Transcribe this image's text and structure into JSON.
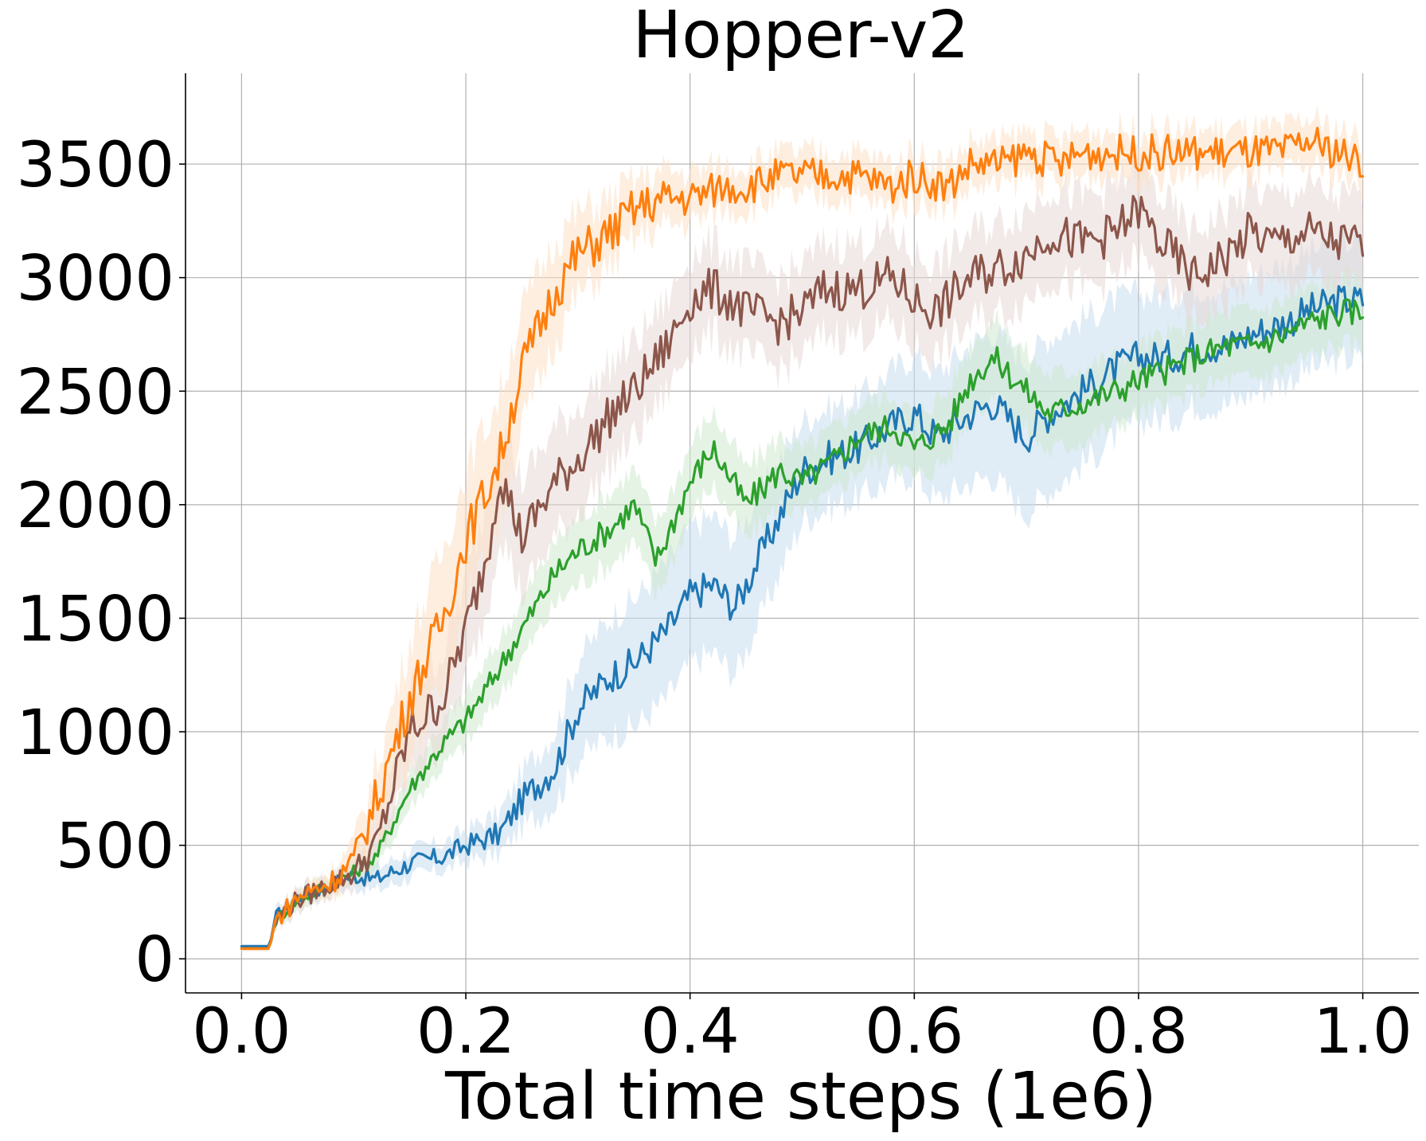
{
  "chart_data": {
    "type": "line",
    "title": "Hopper-v2",
    "xlabel": "Total time steps (1e6)",
    "ylabel": "",
    "xlim": [
      -0.05,
      1.05
    ],
    "ylim": [
      -150,
      3900
    ],
    "x_ticks": [
      0.0,
      0.2,
      0.4,
      0.6,
      0.8,
      1.0
    ],
    "x_tick_labels": [
      "0.0",
      "0.2",
      "0.4",
      "0.6",
      "0.8",
      "1.0"
    ],
    "y_ticks": [
      0,
      500,
      1000,
      1500,
      2000,
      2500,
      3000,
      3500
    ],
    "y_tick_labels": [
      "0",
      "500",
      "1000",
      "1500",
      "2000",
      "2500",
      "3000",
      "3500"
    ],
    "grid": true,
    "legend": "none",
    "series": [
      {
        "color": "#1f77b4",
        "band_color": "#c6dcef",
        "x": [
          0.0,
          0.025,
          0.03,
          0.05,
          0.08,
          0.1,
          0.12,
          0.15,
          0.18,
          0.2,
          0.23,
          0.25,
          0.28,
          0.3,
          0.33,
          0.35,
          0.38,
          0.4,
          0.42,
          0.44,
          0.46,
          0.48,
          0.5,
          0.52,
          0.55,
          0.58,
          0.6,
          0.62,
          0.65,
          0.67,
          0.7,
          0.72,
          0.75,
          0.78,
          0.8,
          0.83,
          0.85,
          0.88,
          0.9,
          0.93,
          0.95,
          0.98,
          1.0
        ],
        "values": [
          55,
          55,
          180,
          270,
          330,
          370,
          350,
          420,
          450,
          500,
          550,
          700,
          850,
          1100,
          1250,
          1300,
          1450,
          1600,
          1650,
          1550,
          1750,
          1950,
          2150,
          2200,
          2250,
          2350,
          2400,
          2300,
          2400,
          2450,
          2300,
          2400,
          2500,
          2600,
          2650,
          2650,
          2700,
          2700,
          2750,
          2800,
          2850,
          2900,
          2900
        ],
        "spread": [
          10,
          10,
          30,
          40,
          40,
          50,
          50,
          60,
          60,
          70,
          90,
          120,
          160,
          220,
          260,
          280,
          300,
          300,
          300,
          300,
          280,
          250,
          220,
          220,
          220,
          240,
          260,
          280,
          300,
          320,
          340,
          340,
          320,
          300,
          280,
          270,
          260,
          260,
          260,
          260,
          260,
          260,
          260
        ]
      },
      {
        "color": "#2ca02c",
        "band_color": "#cfe9cf",
        "x": [
          0.0,
          0.025,
          0.03,
          0.05,
          0.08,
          0.1,
          0.12,
          0.15,
          0.18,
          0.2,
          0.22,
          0.25,
          0.28,
          0.3,
          0.33,
          0.35,
          0.37,
          0.4,
          0.42,
          0.45,
          0.48,
          0.5,
          0.53,
          0.55,
          0.58,
          0.6,
          0.63,
          0.65,
          0.67,
          0.7,
          0.72,
          0.75,
          0.78,
          0.8,
          0.83,
          0.85,
          0.88,
          0.9,
          0.93,
          0.95,
          0.98,
          1.0
        ],
        "values": [
          45,
          45,
          170,
          260,
          330,
          380,
          450,
          750,
          950,
          1050,
          1200,
          1450,
          1700,
          1800,
          1900,
          2000,
          1750,
          2100,
          2250,
          2000,
          2150,
          2100,
          2200,
          2300,
          2350,
          2250,
          2350,
          2550,
          2650,
          2500,
          2400,
          2450,
          2500,
          2550,
          2600,
          2650,
          2700,
          2700,
          2750,
          2800,
          2850,
          2850
        ],
        "spread": [
          10,
          10,
          30,
          40,
          40,
          50,
          60,
          80,
          100,
          110,
          120,
          130,
          140,
          150,
          160,
          160,
          160,
          160,
          160,
          160,
          150,
          140,
          140,
          140,
          140,
          140,
          150,
          160,
          170,
          170,
          170,
          160,
          150,
          150,
          150,
          150,
          150,
          150,
          150,
          150,
          150,
          150
        ]
      },
      {
        "color": "#8c564b",
        "band_color": "#e8d8d5",
        "x": [
          0.0,
          0.025,
          0.03,
          0.05,
          0.08,
          0.1,
          0.12,
          0.15,
          0.18,
          0.2,
          0.22,
          0.23,
          0.25,
          0.28,
          0.3,
          0.33,
          0.35,
          0.38,
          0.4,
          0.42,
          0.45,
          0.48,
          0.5,
          0.52,
          0.55,
          0.58,
          0.6,
          0.62,
          0.65,
          0.68,
          0.7,
          0.72,
          0.75,
          0.78,
          0.8,
          0.82,
          0.85,
          0.88,
          0.9,
          0.92,
          0.95,
          0.98,
          1.0
        ],
        "values": [
          45,
          45,
          170,
          260,
          330,
          380,
          500,
          1000,
          1150,
          1450,
          1800,
          2150,
          1850,
          2100,
          2200,
          2400,
          2500,
          2700,
          2900,
          2950,
          2850,
          2800,
          2850,
          2950,
          2950,
          3000,
          2900,
          2850,
          3000,
          3050,
          3100,
          3200,
          3150,
          3200,
          3300,
          3150,
          3000,
          3100,
          3200,
          3150,
          3200,
          3150,
          3150
        ],
        "spread": [
          10,
          10,
          30,
          40,
          40,
          60,
          100,
          180,
          200,
          220,
          240,
          250,
          250,
          240,
          230,
          220,
          210,
          200,
          200,
          200,
          200,
          200,
          200,
          200,
          200,
          200,
          200,
          200,
          200,
          200,
          200,
          200,
          200,
          200,
          200,
          200,
          200,
          200,
          200,
          200,
          200,
          200,
          200
        ]
      },
      {
        "color": "#ff7f0e",
        "band_color": "#fde0c5",
        "x": [
          0.0,
          0.025,
          0.03,
          0.05,
          0.08,
          0.1,
          0.12,
          0.15,
          0.18,
          0.2,
          0.23,
          0.25,
          0.28,
          0.3,
          0.33,
          0.35,
          0.38,
          0.4,
          0.43,
          0.45,
          0.48,
          0.5,
          0.53,
          0.55,
          0.58,
          0.6,
          0.63,
          0.65,
          0.68,
          0.7,
          0.73,
          0.75,
          0.78,
          0.8,
          0.83,
          0.85,
          0.88,
          0.9,
          0.93,
          0.95,
          0.98,
          1.0
        ],
        "values": [
          45,
          45,
          170,
          270,
          340,
          430,
          700,
          1150,
          1500,
          1850,
          2200,
          2600,
          2950,
          3100,
          3200,
          3300,
          3350,
          3350,
          3400,
          3400,
          3450,
          3450,
          3450,
          3450,
          3400,
          3450,
          3400,
          3500,
          3500,
          3550,
          3500,
          3550,
          3550,
          3550,
          3550,
          3550,
          3550,
          3550,
          3550,
          3600,
          3550,
          3500
        ],
        "spread": [
          10,
          10,
          30,
          40,
          50,
          80,
          150,
          250,
          300,
          300,
          280,
          260,
          220,
          180,
          150,
          130,
          120,
          110,
          100,
          100,
          100,
          100,
          100,
          100,
          100,
          100,
          100,
          100,
          100,
          100,
          100,
          100,
          100,
          100,
          100,
          100,
          100,
          100,
          100,
          100,
          100,
          100
        ]
      }
    ]
  }
}
